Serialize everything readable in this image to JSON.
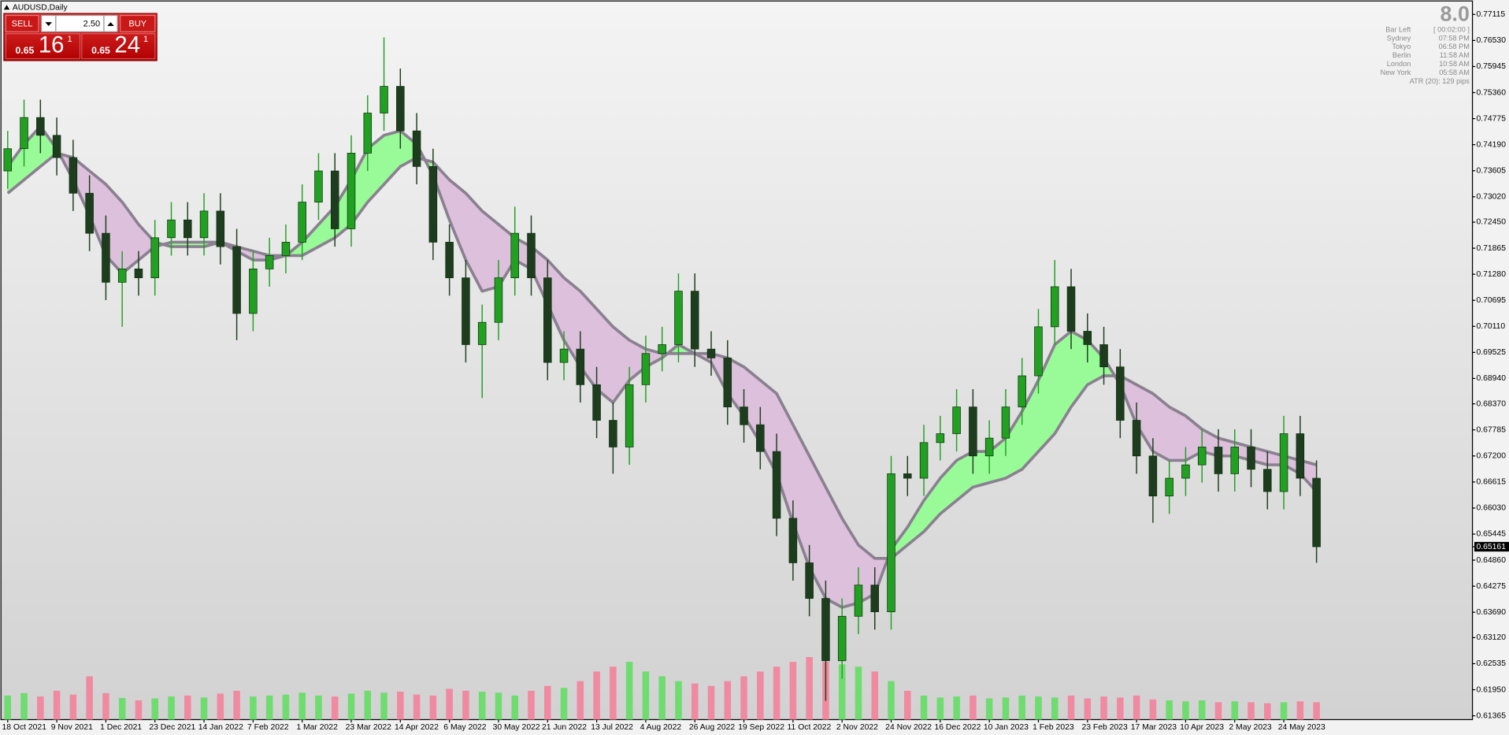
{
  "chart_data": {
    "type": "candlestick",
    "title": "AUDUSD,Daily",
    "categories": [
      "18 Oct 2021",
      null,
      null,
      "9 Nov 2021",
      null,
      null,
      "1 Dec 2021",
      null,
      null,
      "23 Dec 2021",
      null,
      null,
      "14 Jan 2022",
      null,
      null,
      "7 Feb 2022",
      null,
      null,
      "1 Mar 2022",
      null,
      null,
      "23 Mar 2022",
      null,
      null,
      "14 Apr 2022",
      null,
      null,
      "6 May 2022",
      null,
      null,
      "30 May 2022",
      null,
      null,
      "21 Jun 2022",
      null,
      null,
      "13 Jul 2022",
      null,
      null,
      "4 Aug 2022",
      null,
      null,
      "26 Aug 2022",
      null,
      null,
      "19 Sep 2022",
      null,
      null,
      "11 Oct 2022",
      null,
      null,
      "2 Nov 2022",
      null,
      null,
      "24 Nov 2022",
      null,
      null,
      "16 Dec 2022",
      null,
      null,
      "10 Jan 2023",
      null,
      null,
      "1 Feb 2023",
      null,
      null,
      "23 Feb 2023",
      null,
      null,
      "17 Mar 2023",
      null,
      null,
      "10 Apr 2023",
      null,
      null,
      "2 May 2023",
      null,
      null,
      "24 May 2023",
      null,
      null
    ],
    "open": [
      0.736,
      0.741,
      0.748,
      0.744,
      0.739,
      0.731,
      0.722,
      0.711,
      0.714,
      0.712,
      0.721,
      0.725,
      0.721,
      0.727,
      0.719,
      0.704,
      0.714,
      0.717,
      0.72,
      0.729,
      0.736,
      0.723,
      0.74,
      0.749,
      0.755,
      0.745,
      0.737,
      0.72,
      0.712,
      0.697,
      0.702,
      0.712,
      0.722,
      0.712,
      0.693,
      0.696,
      0.688,
      0.68,
      0.674,
      0.688,
      0.695,
      0.697,
      0.709,
      0.696,
      0.694,
      0.683,
      0.679,
      0.673,
      0.658,
      0.648,
      0.64,
      0.626,
      0.636,
      0.643,
      0.637,
      0.668,
      0.667,
      0.675,
      0.677,
      0.683,
      0.672,
      0.676,
      0.683,
      0.69,
      0.701,
      0.71,
      0.7,
      0.697,
      0.692,
      0.68,
      0.672,
      0.663,
      0.667,
      0.67,
      0.674,
      0.668,
      0.674,
      0.669,
      0.664,
      0.677,
      0.667
    ],
    "high": [
      0.745,
      0.752,
      0.752,
      0.748,
      0.743,
      0.735,
      0.726,
      0.718,
      0.718,
      0.725,
      0.729,
      0.729,
      0.731,
      0.731,
      0.723,
      0.718,
      0.721,
      0.724,
      0.733,
      0.74,
      0.74,
      0.744,
      0.753,
      0.766,
      0.759,
      0.749,
      0.741,
      0.724,
      0.716,
      0.706,
      0.716,
      0.728,
      0.726,
      0.716,
      0.7,
      0.7,
      0.692,
      0.684,
      0.692,
      0.699,
      0.701,
      0.713,
      0.713,
      0.7,
      0.698,
      0.687,
      0.683,
      0.677,
      0.662,
      0.652,
      0.644,
      0.64,
      0.647,
      0.647,
      0.672,
      0.672,
      0.679,
      0.681,
      0.687,
      0.687,
      0.68,
      0.687,
      0.694,
      0.705,
      0.716,
      0.714,
      0.704,
      0.701,
      0.696,
      0.684,
      0.676,
      0.671,
      0.674,
      0.678,
      0.678,
      0.678,
      0.678,
      0.673,
      0.681,
      0.681,
      0.671
    ],
    "low": [
      0.732,
      0.737,
      0.74,
      0.735,
      0.727,
      0.718,
      0.707,
      0.701,
      0.708,
      0.708,
      0.717,
      0.717,
      0.717,
      0.715,
      0.698,
      0.7,
      0.71,
      0.713,
      0.716,
      0.725,
      0.719,
      0.719,
      0.736,
      0.745,
      0.741,
      0.733,
      0.716,
      0.708,
      0.693,
      0.685,
      0.698,
      0.708,
      0.708,
      0.689,
      0.689,
      0.684,
      0.676,
      0.668,
      0.67,
      0.684,
      0.691,
      0.693,
      0.692,
      0.69,
      0.679,
      0.675,
      0.669,
      0.654,
      0.644,
      0.636,
      0.617,
      0.622,
      0.632,
      0.633,
      0.633,
      0.663,
      0.663,
      0.671,
      0.673,
      0.668,
      0.668,
      0.672,
      0.679,
      0.686,
      0.697,
      0.696,
      0.693,
      0.688,
      0.676,
      0.668,
      0.657,
      0.659,
      0.663,
      0.666,
      0.664,
      0.664,
      0.665,
      0.66,
      0.66,
      0.663,
      0.648
    ],
    "close": [
      0.741,
      0.748,
      0.744,
      0.739,
      0.731,
      0.722,
      0.711,
      0.714,
      0.712,
      0.721,
      0.725,
      0.721,
      0.727,
      0.719,
      0.704,
      0.714,
      0.717,
      0.72,
      0.729,
      0.736,
      0.723,
      0.74,
      0.749,
      0.755,
      0.745,
      0.737,
      0.72,
      0.712,
      0.697,
      0.702,
      0.712,
      0.722,
      0.712,
      0.693,
      0.696,
      0.688,
      0.68,
      0.674,
      0.688,
      0.695,
      0.697,
      0.709,
      0.696,
      0.694,
      0.683,
      0.679,
      0.673,
      0.658,
      0.648,
      0.64,
      0.626,
      0.636,
      0.643,
      0.637,
      0.668,
      0.667,
      0.675,
      0.677,
      0.683,
      0.672,
      0.676,
      0.683,
      0.69,
      0.701,
      0.71,
      0.7,
      0.697,
      0.692,
      0.68,
      0.672,
      0.663,
      0.667,
      0.67,
      0.674,
      0.668,
      0.674,
      0.669,
      0.664,
      0.677,
      0.667,
      0.65161
    ],
    "ma_fast": [
      0.737,
      0.742,
      0.746,
      0.741,
      0.734,
      0.726,
      0.717,
      0.713,
      0.716,
      0.719,
      0.72,
      0.72,
      0.72,
      0.72,
      0.718,
      0.716,
      0.716,
      0.717,
      0.72,
      0.724,
      0.728,
      0.734,
      0.741,
      0.744,
      0.745,
      0.742,
      0.735,
      0.725,
      0.716,
      0.709,
      0.71,
      0.716,
      0.714,
      0.706,
      0.698,
      0.692,
      0.687,
      0.684,
      0.689,
      0.692,
      0.694,
      0.697,
      0.695,
      0.693,
      0.686,
      0.681,
      0.675,
      0.668,
      0.657,
      0.647,
      0.64,
      0.638,
      0.639,
      0.641,
      0.651,
      0.656,
      0.662,
      0.667,
      0.671,
      0.673,
      0.673,
      0.676,
      0.682,
      0.689,
      0.697,
      0.7,
      0.698,
      0.694,
      0.688,
      0.679,
      0.673,
      0.671,
      0.671,
      0.673,
      0.672,
      0.672,
      0.671,
      0.67,
      0.67,
      0.668,
      0.664
    ],
    "ma_slow": [
      0.731,
      0.734,
      0.737,
      0.74,
      0.739,
      0.736,
      0.733,
      0.729,
      0.724,
      0.72,
      0.719,
      0.719,
      0.719,
      0.72,
      0.719,
      0.718,
      0.717,
      0.717,
      0.717,
      0.719,
      0.721,
      0.724,
      0.729,
      0.733,
      0.737,
      0.739,
      0.738,
      0.734,
      0.731,
      0.727,
      0.724,
      0.721,
      0.719,
      0.716,
      0.712,
      0.709,
      0.705,
      0.701,
      0.698,
      0.696,
      0.695,
      0.695,
      0.695,
      0.695,
      0.694,
      0.692,
      0.689,
      0.686,
      0.679,
      0.672,
      0.665,
      0.658,
      0.652,
      0.649,
      0.649,
      0.652,
      0.655,
      0.659,
      0.662,
      0.665,
      0.666,
      0.667,
      0.669,
      0.673,
      0.677,
      0.683,
      0.688,
      0.69,
      0.69,
      0.688,
      0.686,
      0.683,
      0.681,
      0.678,
      0.676,
      0.675,
      0.674,
      0.673,
      0.672,
      0.671,
      0.67
    ],
    "volume": [
      100,
      110,
      96,
      120,
      104,
      180,
      110,
      90,
      80,
      88,
      96,
      100,
      92,
      108,
      120,
      96,
      100,
      104,
      112,
      100,
      96,
      108,
      120,
      112,
      116,
      104,
      100,
      128,
      120,
      116,
      112,
      100,
      120,
      140,
      132,
      160,
      200,
      220,
      240,
      200,
      180,
      160,
      150,
      140,
      160,
      180,
      200,
      220,
      240,
      260,
      240,
      230,
      220,
      200,
      160,
      120,
      100,
      92,
      96,
      100,
      88,
      92,
      100,
      96,
      92,
      100,
      88,
      96,
      92,
      100,
      84,
      80,
      76,
      80,
      72,
      76,
      72,
      68,
      72,
      76,
      72
    ],
    "last_price": {
      "value": 0.65161,
      "label": "0.65161"
    },
    "ylim": [
      0.61279,
      0.77396
    ],
    "yticks": [
      0.77115,
      {
        "value": 0.7653,
        "label": "0.76530"
      },
      0.75945,
      {
        "value": 0.7536,
        "label": "0.75360"
      },
      0.74775,
      {
        "value": 0.7419,
        "label": "0.74190"
      },
      0.73605,
      {
        "value": 0.7302,
        "label": "0.73020"
      },
      {
        "value": 0.7245,
        "label": "0.72450"
      },
      0.71865,
      {
        "value": 0.7128,
        "label": "0.71280"
      },
      0.70695,
      {
        "value": 0.7011,
        "label": "0.70110"
      },
      0.69525,
      {
        "value": 0.6894,
        "label": "0.68940"
      },
      {
        "value": 0.6837,
        "label": "0.68370"
      },
      0.67785,
      {
        "value": 0.672,
        "label": "0.67200"
      },
      0.66615,
      {
        "value": 0.6603,
        "label": "0.66030"
      },
      0.65445,
      {
        "value": 0.6486,
        "label": "0.64860"
      },
      0.64275,
      {
        "value": 0.6369,
        "label": "0.63690"
      },
      {
        "value": 0.6312,
        "label": "0.63120"
      },
      0.62535,
      {
        "value": 0.6195,
        "label": "0.61950"
      },
      0.61365
    ],
    "grid": false,
    "up_color": "#22a022",
    "down_color": "#1e3d1e",
    "ma_color": "#8a8090",
    "band_up_color": "#98fb98",
    "band_down_color": "#dcc0dc",
    "volume_up_color": "#6fdc6f",
    "volume_down_color": "#f08aa0"
  },
  "trade_panel": {
    "sell": "SELL",
    "buy": "BUY",
    "lots": "2.50",
    "bid": {
      "big_figure": "0.65",
      "pips": "16",
      "fraction": "1"
    },
    "ask": {
      "big_figure": "0.65",
      "pips": "24",
      "fraction": "1"
    }
  },
  "info_panel": {
    "value": "8.0",
    "bar_left_label": "Bar Left",
    "bar_left": "[ 00:02:00 ]",
    "sessions": [
      {
        "city": "Sydney",
        "time": "07:58 PM"
      },
      {
        "city": "Tokyo",
        "time": "06:58 PM"
      },
      {
        "city": "Berlin",
        "time": "11:58 AM"
      },
      {
        "city": "London",
        "time": "10:58 AM"
      },
      {
        "city": "New York",
        "time": "05:58 AM"
      }
    ],
    "atr": "ATR (20): 129 pips"
  }
}
